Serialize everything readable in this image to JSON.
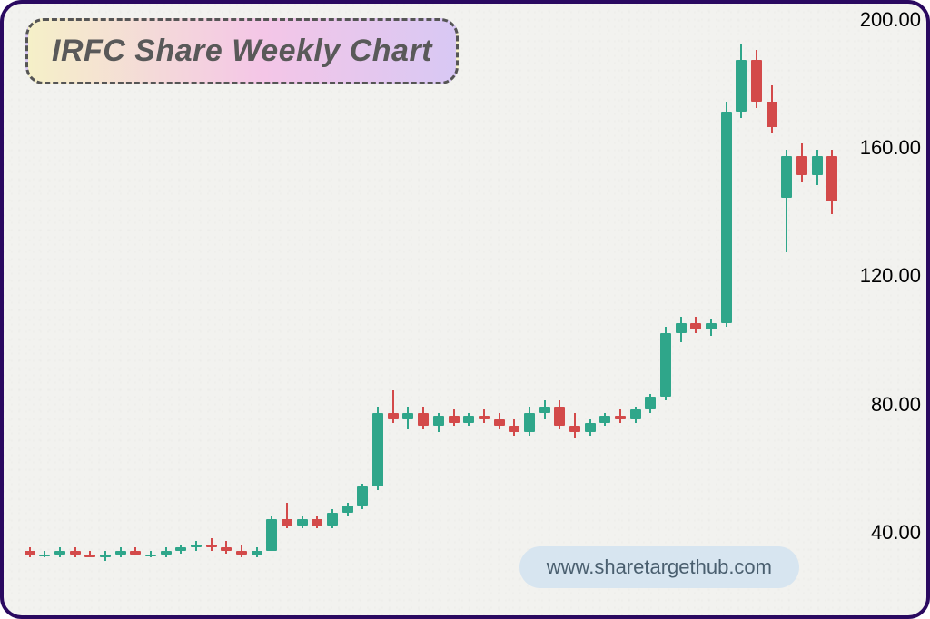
{
  "title": "IRFC Share Weekly Chart",
  "watermark": "www.sharetargethub.com",
  "colors": {
    "border": "#2a0960",
    "bg": "#f2f2ef",
    "title_text": "#595959",
    "title_gradient": [
      "#f5f0c8",
      "#f4c6e7",
      "#d8c8f4"
    ],
    "up": "#2fa68a",
    "down": "#d34a4a",
    "wick_up": "#2fa68a",
    "wick_down": "#d34a4a",
    "ylabel": "#000000",
    "watermark_bg": "#d7e5f0",
    "watermark_text": "#4a5f6f"
  },
  "chart": {
    "type": "candlestick",
    "ymin": 20,
    "ymax": 205,
    "yticks": [
      40,
      80,
      120,
      160,
      200
    ],
    "ylabel_fontsize": 22,
    "candle_width": 12,
    "wick_width": 2,
    "candles": [
      {
        "o": 35,
        "h": 36,
        "l": 33,
        "c": 34
      },
      {
        "o": 34,
        "h": 35,
        "l": 33,
        "c": 34
      },
      {
        "o": 34,
        "h": 36,
        "l": 33,
        "c": 35
      },
      {
        "o": 35,
        "h": 36,
        "l": 33,
        "c": 34
      },
      {
        "o": 34,
        "h": 35,
        "l": 33,
        "c": 33
      },
      {
        "o": 33,
        "h": 35,
        "l": 32,
        "c": 34
      },
      {
        "o": 34,
        "h": 36,
        "l": 33,
        "c": 35
      },
      {
        "o": 35,
        "h": 36,
        "l": 34,
        "c": 34
      },
      {
        "o": 34,
        "h": 35,
        "l": 33,
        "c": 34
      },
      {
        "o": 34,
        "h": 36,
        "l": 33,
        "c": 35
      },
      {
        "o": 35,
        "h": 37,
        "l": 34,
        "c": 36
      },
      {
        "o": 36,
        "h": 38,
        "l": 35,
        "c": 37
      },
      {
        "o": 37,
        "h": 39,
        "l": 35,
        "c": 36
      },
      {
        "o": 36,
        "h": 38,
        "l": 34,
        "c": 35
      },
      {
        "o": 35,
        "h": 37,
        "l": 33,
        "c": 34
      },
      {
        "o": 34,
        "h": 36,
        "l": 33,
        "c": 35
      },
      {
        "o": 35,
        "h": 46,
        "l": 35,
        "c": 45
      },
      {
        "o": 45,
        "h": 50,
        "l": 42,
        "c": 43
      },
      {
        "o": 43,
        "h": 46,
        "l": 42,
        "c": 45
      },
      {
        "o": 45,
        "h": 46,
        "l": 42,
        "c": 43
      },
      {
        "o": 43,
        "h": 48,
        "l": 42,
        "c": 47
      },
      {
        "o": 47,
        "h": 50,
        "l": 46,
        "c": 49
      },
      {
        "o": 49,
        "h": 56,
        "l": 48,
        "c": 55
      },
      {
        "o": 55,
        "h": 80,
        "l": 54,
        "c": 78
      },
      {
        "o": 78,
        "h": 85,
        "l": 75,
        "c": 76
      },
      {
        "o": 76,
        "h": 80,
        "l": 73,
        "c": 78
      },
      {
        "o": 78,
        "h": 80,
        "l": 73,
        "c": 74
      },
      {
        "o": 74,
        "h": 78,
        "l": 72,
        "c": 77
      },
      {
        "o": 77,
        "h": 79,
        "l": 74,
        "c": 75
      },
      {
        "o": 75,
        "h": 78,
        "l": 74,
        "c": 77
      },
      {
        "o": 77,
        "h": 79,
        "l": 75,
        "c": 76
      },
      {
        "o": 76,
        "h": 78,
        "l": 73,
        "c": 74
      },
      {
        "o": 74,
        "h": 76,
        "l": 71,
        "c": 72
      },
      {
        "o": 72,
        "h": 80,
        "l": 71,
        "c": 78
      },
      {
        "o": 78,
        "h": 82,
        "l": 76,
        "c": 80
      },
      {
        "o": 80,
        "h": 82,
        "l": 73,
        "c": 74
      },
      {
        "o": 74,
        "h": 78,
        "l": 70,
        "c": 72
      },
      {
        "o": 72,
        "h": 76,
        "l": 71,
        "c": 75
      },
      {
        "o": 75,
        "h": 78,
        "l": 74,
        "c": 77
      },
      {
        "o": 77,
        "h": 79,
        "l": 75,
        "c": 76
      },
      {
        "o": 76,
        "h": 80,
        "l": 75,
        "c": 79
      },
      {
        "o": 79,
        "h": 84,
        "l": 78,
        "c": 83
      },
      {
        "o": 83,
        "h": 105,
        "l": 82,
        "c": 103
      },
      {
        "o": 103,
        "h": 108,
        "l": 100,
        "c": 106
      },
      {
        "o": 106,
        "h": 108,
        "l": 103,
        "c": 104
      },
      {
        "o": 104,
        "h": 107,
        "l": 102,
        "c": 106
      },
      {
        "o": 106,
        "h": 175,
        "l": 105,
        "c": 172
      },
      {
        "o": 172,
        "h": 193,
        "l": 170,
        "c": 188
      },
      {
        "o": 188,
        "h": 191,
        "l": 173,
        "c": 175
      },
      {
        "o": 175,
        "h": 180,
        "l": 165,
        "c": 167
      },
      {
        "o": 145,
        "h": 160,
        "l": 128,
        "c": 158
      },
      {
        "o": 158,
        "h": 162,
        "l": 150,
        "c": 152
      },
      {
        "o": 152,
        "h": 160,
        "l": 149,
        "c": 158
      },
      {
        "o": 158,
        "h": 160,
        "l": 140,
        "c": 144
      }
    ]
  }
}
